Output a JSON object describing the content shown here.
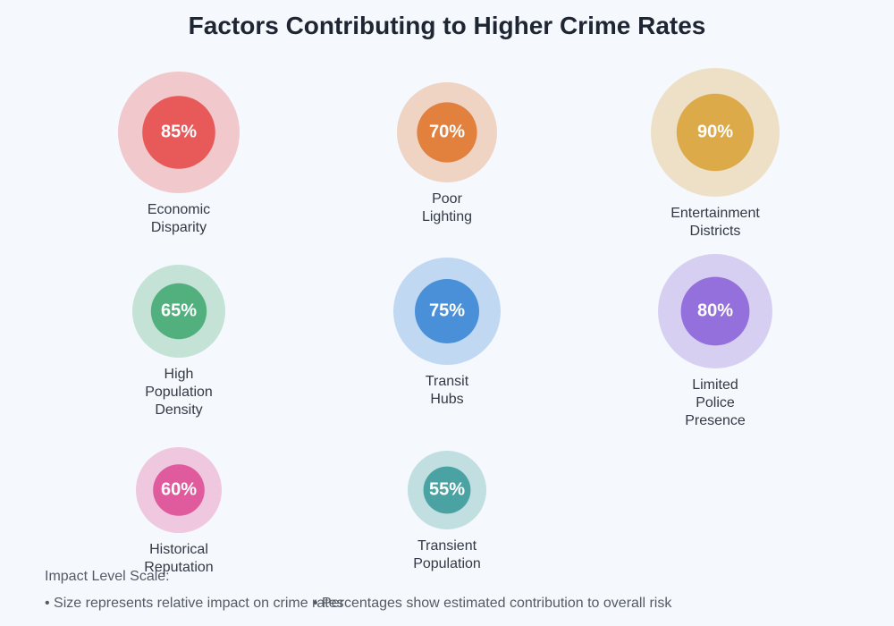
{
  "chart_data": {
    "type": "bubble",
    "title": "Factors Contributing to Higher Crime Rates",
    "categories": [
      "Economic Disparity",
      "Poor Lighting",
      "Entertainment Districts",
      "High Population Density",
      "Transit Hubs",
      "Limited Police Presence",
      "Historical Reputation",
      "Transient Population"
    ],
    "values": [
      85,
      70,
      90,
      65,
      75,
      80,
      60,
      55
    ],
    "value_labels": [
      "85%",
      "70%",
      "90%",
      "65%",
      "75%",
      "80%",
      "60%",
      "55%"
    ],
    "colors": [
      "#e85a5a",
      "#e2803e",
      "#dcaa48",
      "#52b07e",
      "#4a90d9",
      "#9370db",
      "#e05a9e",
      "#4aa3a2"
    ],
    "legend_title": "Impact Level Scale:",
    "notes": [
      "• Size represents relative impact on crime rates",
      "• Percentages show estimated contribution to overall risk"
    ]
  }
}
